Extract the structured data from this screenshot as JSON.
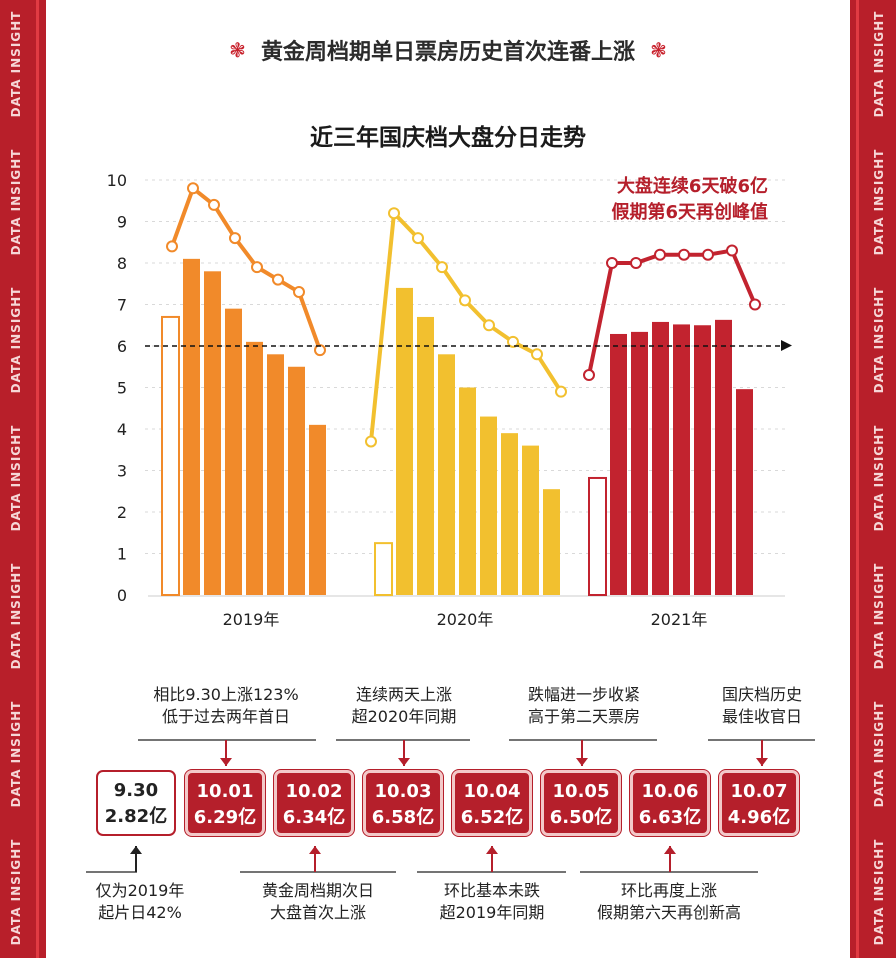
{
  "side_label": "DATA INSIGHT",
  "main_title": "黄金周档期单日票房历史首次连番上涨",
  "flower_icon": "❃",
  "colors": {
    "frame": "#b81f2a",
    "y2019": "#f18a2a",
    "y2020": "#f2c02f",
    "y2021": "#c2232f",
    "box_red": "#b51f2b"
  },
  "chart_data": {
    "type": "bar",
    "title": "近三年国庆档大盘分日走势",
    "ylim": [
      0,
      10
    ],
    "yticks": [
      "0",
      "1",
      "2",
      "3",
      "4",
      "5",
      "6",
      "7",
      "8",
      "9",
      "10"
    ],
    "reference_line": 6,
    "groups": [
      {
        "label": "2019年",
        "color": "#f18a2a",
        "prev_day": 6.7,
        "values": [
          8.1,
          7.8,
          6.9,
          6.1,
          5.8,
          5.5,
          4.1
        ],
        "line": [
          8.4,
          9.8,
          9.4,
          8.6,
          7.9,
          7.6,
          7.3,
          5.9
        ]
      },
      {
        "label": "2020年",
        "color": "#f2c02f",
        "prev_day": 1.25,
        "values": [
          7.4,
          6.7,
          5.8,
          5.0,
          4.3,
          3.9,
          3.6,
          2.55
        ],
        "line": [
          3.7,
          9.2,
          8.6,
          7.9,
          7.1,
          6.5,
          6.1,
          5.8,
          4.9
        ]
      },
      {
        "label": "2021年",
        "color": "#c2232f",
        "prev_day": 2.82,
        "values": [
          6.29,
          6.34,
          6.58,
          6.52,
          6.5,
          6.63,
          4.96
        ],
        "line": [
          5.3,
          8.0,
          8.0,
          8.2,
          8.2,
          8.2,
          8.3,
          7.0
        ]
      }
    ],
    "annotation": [
      "大盘连续6天破6亿",
      "假期第6天再创峰值"
    ]
  },
  "days": [
    {
      "date": "9.30",
      "value": "2.82亿",
      "style": "white"
    },
    {
      "date": "10.01",
      "value": "6.29亿",
      "style": "red"
    },
    {
      "date": "10.02",
      "value": "6.34亿",
      "style": "red"
    },
    {
      "date": "10.03",
      "value": "6.58亿",
      "style": "red"
    },
    {
      "date": "10.04",
      "value": "6.52亿",
      "style": "red"
    },
    {
      "date": "10.05",
      "value": "6.50亿",
      "style": "red"
    },
    {
      "date": "10.06",
      "value": "6.63亿",
      "style": "red"
    },
    {
      "date": "10.07",
      "value": "4.96亿",
      "style": "red"
    }
  ],
  "callouts_top": [
    {
      "lines": [
        "相比9.30上涨123%",
        "低于过去两年首日"
      ]
    },
    {
      "lines": [
        "连续两天上涨",
        "超2020年同期"
      ]
    },
    {
      "lines": [
        "跌幅进一步收紧",
        "高于第二天票房"
      ]
    },
    {
      "lines": [
        "国庆档历史",
        "最佳收官日"
      ]
    }
  ],
  "callouts_bottom": [
    {
      "lines": [
        "仅为2019年",
        "起片日42%"
      ]
    },
    {
      "lines": [
        "黄金周档期次日",
        "大盘首次上涨"
      ]
    },
    {
      "lines": [
        "环比基本未跌",
        "超2019年同期"
      ]
    },
    {
      "lines": [
        "环比再度上涨",
        "假期第六天再创新高"
      ]
    }
  ]
}
